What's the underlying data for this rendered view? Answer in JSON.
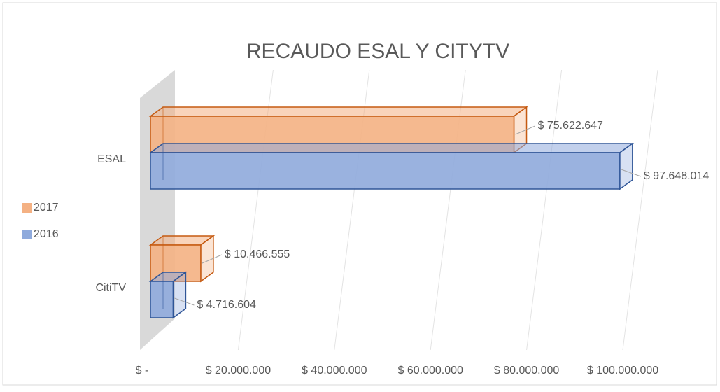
{
  "chart_data": {
    "type": "bar",
    "orientation": "horizontal",
    "3d": true,
    "title": "RECAUDO ESAL Y CITYTV",
    "categories": [
      "ESAL",
      "CitiTV"
    ],
    "series": [
      {
        "name": "2017",
        "color": "#f4b183",
        "values": [
          75622647,
          10466555
        ],
        "value_labels": [
          "$ 75.622.647",
          "$ 10.466.555"
        ]
      },
      {
        "name": "2016",
        "color": "#8faadc",
        "values": [
          97648014,
          4716604
        ],
        "value_labels": [
          "$ 97.648.014",
          "$ 4.716.604"
        ]
      }
    ],
    "xlim": [
      0,
      100000000
    ],
    "xticks": [
      {
        "value": 0,
        "label": "$ -"
      },
      {
        "value": 20000000,
        "label": "$ 20.000.000"
      },
      {
        "value": 40000000,
        "label": "$ 40.000.000"
      },
      {
        "value": 60000000,
        "label": "$ 60.000.000"
      },
      {
        "value": 80000000,
        "label": "$ 80.000.000"
      },
      {
        "value": 100000000,
        "label": "$ 100.000.000"
      }
    ],
    "grid": true,
    "legend": "left"
  }
}
